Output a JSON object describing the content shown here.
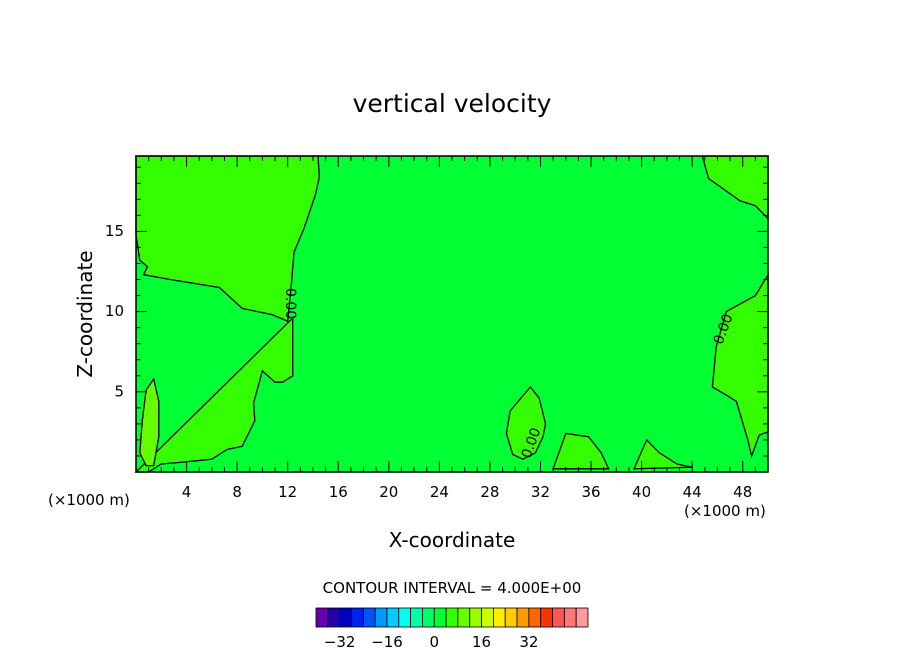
{
  "chart_data": {
    "type": "heatmap",
    "subtype": "filled-contour",
    "title": "vertical velocity",
    "xlabel": "X-coordinate",
    "ylabel": "Z-coordinate",
    "x_unit": "(×1000 m)",
    "x_unit_right": "(×1000 m)",
    "xlim": [
      0,
      50
    ],
    "ylim": [
      0,
      19.7
    ],
    "xticks": [
      4,
      8,
      12,
      16,
      20,
      24,
      28,
      32,
      36,
      40,
      44,
      48
    ],
    "yticks": [
      5,
      10,
      15
    ],
    "contour_interval_text": "CONTOUR INTERVAL = 4.000E+00",
    "contour_labels": [
      {
        "text": "0.00",
        "x": 12.2,
        "z": 10.5,
        "angle": 90
      },
      {
        "text": "0.00",
        "x": 46.5,
        "z": 8.9,
        "angle": -70
      },
      {
        "text": "0.00",
        "x": 31.3,
        "z": 1.8,
        "angle": -70
      }
    ],
    "regions": [
      {
        "level": "4 to 8",
        "color": "#33ff00",
        "x": [
          0,
          0,
          0.3,
          0.9,
          0.6,
          2.7,
          6.6,
          8.4,
          10.8,
          12.0,
          12.3,
          12.5,
          13.3,
          14.2,
          14.5,
          14.4
        ],
        "z": [
          19.7,
          14.8,
          13.2,
          12.8,
          12.3,
          12.0,
          11.5,
          10.2,
          9.8,
          9.4,
          11.8,
          13.7,
          15.2,
          17.3,
          18.4,
          19.7
        ]
      },
      {
        "level": "4 to 8",
        "color": "#33ff00",
        "x": [
          0,
          1.0,
          2.0,
          3.5,
          6.0,
          7.2,
          8.4,
          9.4,
          9.3,
          10.0,
          11.0,
          11.6,
          12.4,
          12.4
        ],
        "z": [
          0,
          0,
          0.5,
          0.6,
          0.8,
          1.4,
          1.6,
          3.2,
          4.3,
          6.3,
          5.6,
          5.6,
          6.0,
          9.6
        ]
      },
      {
        "level": "4 to 8",
        "color": "#33ff00",
        "x": [
          29.6,
          29.3,
          29.8,
          30.6,
          31.6,
          32.2,
          32.4,
          31.9,
          31.2
        ],
        "z": [
          3.8,
          2.4,
          1.1,
          0.8,
          1.2,
          2.2,
          3.0,
          4.6,
          5.3
        ]
      },
      {
        "level": "4 to 8",
        "color": "#33ff00",
        "x": [
          33.0,
          34.0,
          35.8,
          36.8,
          37.4,
          33.0
        ],
        "z": [
          0.2,
          2.4,
          2.2,
          1.2,
          0.2,
          0.2
        ]
      },
      {
        "level": "4 to 8",
        "color": "#33ff00",
        "x": [
          39.4,
          40.4,
          41.4,
          42.8,
          44.0
        ],
        "z": [
          0.2,
          2.0,
          1.2,
          0.5,
          0.3
        ]
      },
      {
        "level": "4 to 8",
        "color": "#33ff00",
        "x": [
          44.8,
          45.3,
          47.8,
          49.0,
          50.0,
          50.0,
          44.8
        ],
        "z": [
          19.7,
          18.3,
          16.9,
          16.6,
          15.8,
          19.7,
          19.7
        ]
      },
      {
        "level": "4 to 8",
        "color": "#33ff00",
        "x": [
          50.0,
          49.0,
          46.7,
          45.9,
          45.6,
          46.7,
          47.5,
          48.4,
          48.7,
          49.3,
          50.0
        ],
        "z": [
          12.3,
          11.0,
          10.0,
          7.8,
          5.3,
          4.8,
          4.4,
          2.0,
          1.0,
          2.3,
          2.5
        ]
      },
      {
        "level": "8 to 12",
        "color": "#66ff00",
        "x": [
          0.3,
          0.5,
          0.8,
          1.4,
          1.8,
          1.8,
          1.4,
          0.8,
          0.3
        ],
        "z": [
          1.2,
          3.2,
          5.1,
          5.8,
          4.4,
          2.2,
          0.4,
          0.4,
          1.2
        ]
      }
    ],
    "background": {
      "level": "0 to 4",
      "color": "#00ff33"
    },
    "colorbar": {
      "colors": [
        "#6600aa",
        "#2200aa",
        "#0000bb",
        "#0022ee",
        "#0055ff",
        "#0099ff",
        "#00ccff",
        "#00ffee",
        "#00ffaa",
        "#00ff66",
        "#00ff33",
        "#33ff00",
        "#66ff00",
        "#99ff00",
        "#ccff00",
        "#ffee00",
        "#ffcc00",
        "#ff9900",
        "#ff6600",
        "#ff3300",
        "#ff5555",
        "#ff7777",
        "#ff9999"
      ],
      "tick_labels": [
        "−32",
        "−16",
        "0",
        "16",
        "32"
      ],
      "tick_values": [
        -32,
        -16,
        0,
        16,
        32
      ],
      "range": [
        -40,
        52
      ]
    }
  }
}
